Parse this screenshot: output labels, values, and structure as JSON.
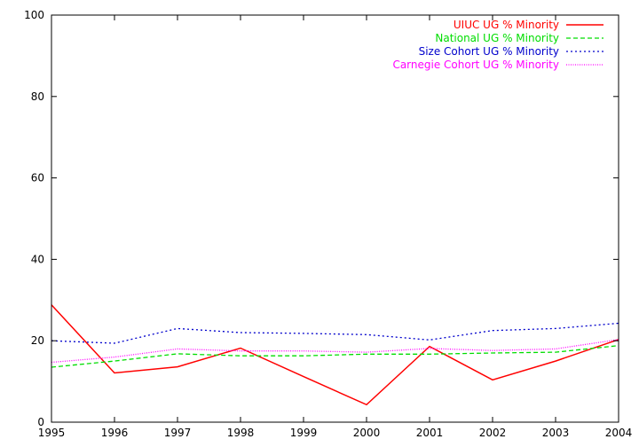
{
  "chart_data": {
    "type": "line",
    "title": "",
    "xlabel": "",
    "ylabel": "",
    "x": [
      1995,
      1996,
      1997,
      1998,
      1999,
      2000,
      2001,
      2002,
      2003,
      2004
    ],
    "xlim": [
      1995,
      2004
    ],
    "ylim": [
      0,
      100
    ],
    "x_ticks": [
      "1995",
      "1996",
      "1997",
      "1998",
      "1999",
      "2000",
      "2001",
      "2002",
      "2003",
      "2004"
    ],
    "y_ticks": [
      "0",
      "20",
      "40",
      "60",
      "80",
      "100"
    ],
    "grid": false,
    "legend_position": "top-right",
    "series": [
      {
        "name": "UIUC UG % Minority",
        "color": "#ff0000",
        "dash": "solid",
        "values": [
          28.8,
          12.1,
          13.6,
          18.2,
          11.2,
          4.3,
          18.6,
          10.4,
          15.0,
          20.3
        ]
      },
      {
        "name": "National UG % Minority",
        "color": "#00dd00",
        "dash": "dashed",
        "values": [
          13.5,
          15.0,
          16.8,
          16.3,
          16.3,
          16.7,
          16.7,
          17.0,
          17.2,
          18.8
        ]
      },
      {
        "name": "Size Cohort UG % Minority",
        "color": "#0000cc",
        "dash": "dotted",
        "values": [
          20.0,
          19.4,
          23.0,
          22.0,
          21.8,
          21.5,
          20.2,
          22.5,
          23.0,
          24.3
        ]
      },
      {
        "name": "Carnegie Cohort UG % Minority",
        "color": "#ff00ff",
        "dash": "fine-dotted",
        "values": [
          14.7,
          16.0,
          18.0,
          17.5,
          17.5,
          17.2,
          18.1,
          17.6,
          18.0,
          20.3
        ]
      }
    ]
  }
}
